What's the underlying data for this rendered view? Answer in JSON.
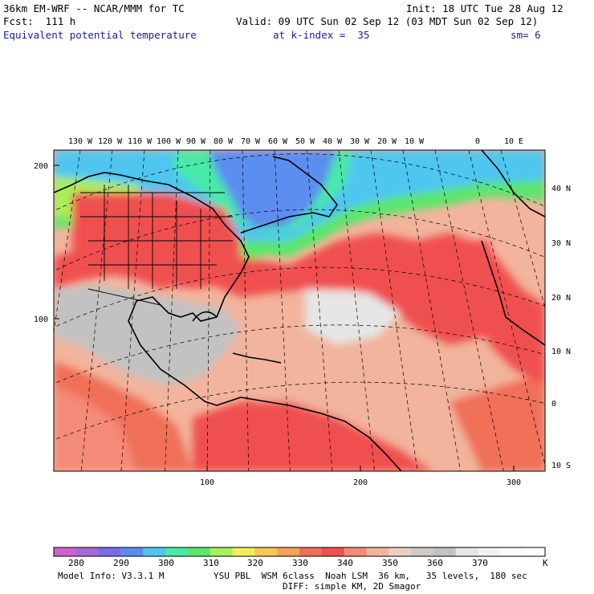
{
  "header": {
    "model_title": "36km EM-WRF -- NCAR/MMM for TC",
    "init": "Init: 18 UTC Tue 28 Aug 12",
    "forecast": "Fcst:  111 h",
    "valid": "Valid: 09 UTC Sun 02 Sep 12 (03 MDT Sun 02 Sep 12)",
    "field": "Equivalent potential temperature",
    "level": "at k-index =  35",
    "smoothing": "sm= 6"
  },
  "map": {
    "top_lon_labels": [
      "130 W",
      "120 W",
      "110 W",
      "100 W",
      "90 W",
      "80 W",
      "70 W",
      "60 W",
      "50 W",
      "40 W",
      "30 W",
      "20 W",
      "10 W",
      "0",
      "10 E"
    ],
    "right_lat_labels": [
      "40 N",
      "30 N",
      "20 N",
      "10 N",
      "0",
      "10 S"
    ],
    "left_grid_labels": [
      "200",
      "100"
    ],
    "bottom_grid_labels": [
      "100",
      "200",
      "300"
    ]
  },
  "colorbar": {
    "labels": [
      "280",
      "290",
      "300",
      "310",
      "320",
      "330",
      "340",
      "350",
      "360",
      "370"
    ],
    "unit": "K",
    "colors": [
      "#d060d0",
      "#a46ad8",
      "#7a6ce8",
      "#5b8df0",
      "#4fc6f0",
      "#49e9a8",
      "#5ae66a",
      "#a8ef5a",
      "#f0f05a",
      "#f6c85a",
      "#f6a05a",
      "#f07058",
      "#f05050",
      "#f48a78",
      "#f2b49c",
      "#e8d0c0",
      "#d0c8c4",
      "#c2c2c2",
      "#e6e6e6",
      "#f2f2f2",
      "#fafafa",
      "#ffffff"
    ]
  },
  "footer": {
    "model_info": "Model Info: V3.3.1 M",
    "physics": "YSU PBL  WSM 6class  Noah LSM  36 km,   35 levels,  180 sec",
    "diffusion": "DIFF: simple KM, 2D Smagor"
  }
}
